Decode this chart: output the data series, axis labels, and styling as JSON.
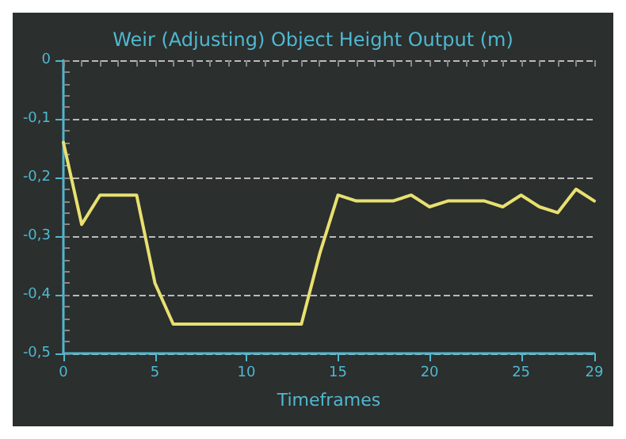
{
  "chart_data": {
    "type": "line",
    "title": "Weir (Adjusting) Object Height Output (m)",
    "xlabel": "Timeframes",
    "x": [
      0,
      1,
      2,
      3,
      4,
      5,
      6,
      7,
      8,
      9,
      10,
      11,
      12,
      13,
      14,
      15,
      16,
      17,
      18,
      19,
      20,
      21,
      22,
      23,
      24,
      25,
      26,
      27,
      28,
      29
    ],
    "series": [
      {
        "color": "#e8e070",
        "values": [
          -0.14,
          -0.28,
          -0.23,
          -0.23,
          -0.23,
          -0.38,
          -0.45,
          -0.45,
          -0.45,
          -0.45,
          -0.45,
          -0.45,
          -0.45,
          -0.45,
          -0.33,
          -0.23,
          -0.24,
          -0.24,
          -0.24,
          -0.23,
          -0.25,
          -0.24,
          -0.24,
          -0.24,
          -0.25,
          -0.23,
          -0.25,
          -0.26,
          -0.22,
          -0.24
        ]
      }
    ],
    "xlim": [
      0,
      29
    ],
    "xticks": [
      0,
      5,
      10,
      15,
      20,
      25,
      29
    ],
    "ylim": [
      -0.5,
      0
    ],
    "yticks": [
      {
        "value": -0.5,
        "label": "-0,5"
      },
      {
        "value": -0.4,
        "label": "-0,4"
      },
      {
        "value": -0.3,
        "label": "-0,3"
      },
      {
        "value": -0.2,
        "label": "-0,2"
      },
      {
        "value": -0.1,
        "label": "-0,1"
      },
      0
    ],
    "grid": "y",
    "marker": "none",
    "line_style": "solid"
  }
}
